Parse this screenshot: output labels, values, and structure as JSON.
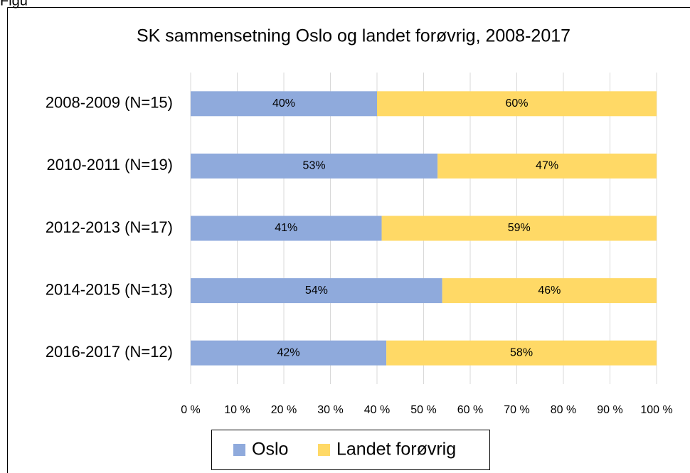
{
  "caption": "Figu",
  "chart_data": {
    "type": "stacked_barh",
    "title": "SK sammensetning Oslo og landet forøvrig, 2008-2017",
    "categories": [
      "2008-2009 (N=15)",
      "2010-2011 (N=19)",
      "2012-2013 (N=17)",
      "2014-2015 (N=13)",
      "2016-2017 (N=12)"
    ],
    "series": [
      {
        "name": "Oslo",
        "color": "#8faadc",
        "values": [
          40,
          53,
          41,
          54,
          42
        ],
        "value_labels": [
          "40%",
          "53%",
          "41%",
          "54%",
          "42%"
        ]
      },
      {
        "name": "Landet forøvrig",
        "color": "#ffd966",
        "values": [
          60,
          47,
          59,
          46,
          58
        ],
        "value_labels": [
          "60%",
          "47%",
          "59%",
          "46%",
          "58%"
        ]
      }
    ],
    "xlim": [
      0,
      100
    ],
    "xticks": [
      {
        "value": 0,
        "label": "0 %"
      },
      {
        "value": 10,
        "label": "10 %"
      },
      {
        "value": 20,
        "label": "20 %"
      },
      {
        "value": 30,
        "label": "30 %"
      },
      {
        "value": 40,
        "label": "40 %"
      },
      {
        "value": 50,
        "label": "50 %"
      },
      {
        "value": 60,
        "label": "60 %"
      },
      {
        "value": 70,
        "label": "70 %"
      },
      {
        "value": 80,
        "label": "80 %"
      },
      {
        "value": 90,
        "label": "90 %"
      },
      {
        "value": 100,
        "label": "100 %"
      }
    ],
    "grid": true,
    "legend": "bottom"
  }
}
